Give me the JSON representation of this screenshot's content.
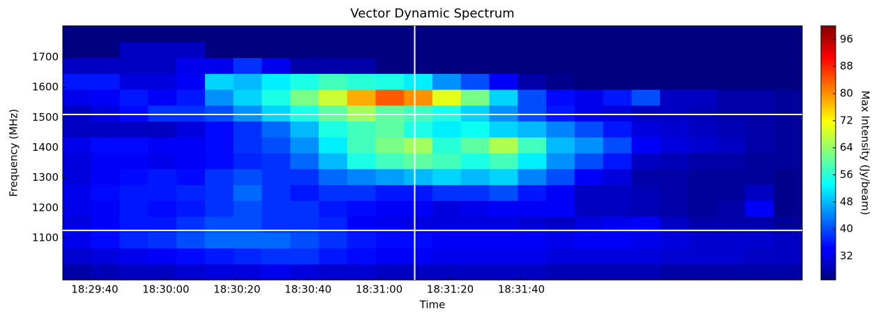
{
  "chart_data": {
    "type": "heatmap",
    "title": "Vector Dynamic Spectrum",
    "x_label": "Time",
    "y_label": "Frequency (MHz)",
    "colorbar_label": "Max Intensity (Jy/beam)",
    "colormap": "jet",
    "xlim": [
      66571,
      66779
    ],
    "ylim": [
      961,
      1804
    ],
    "clim": [
      25,
      100
    ],
    "xticks": [
      {
        "value": 66580,
        "label": "18:29:40"
      },
      {
        "value": 66600,
        "label": "18:30:00"
      },
      {
        "value": 66620,
        "label": "18:30:20"
      },
      {
        "value": 66640,
        "label": "18:30:40"
      },
      {
        "value": 66660,
        "label": "18:31:00"
      },
      {
        "value": 66680,
        "label": "18:31:20"
      },
      {
        "value": 66700,
        "label": "18:31:40"
      }
    ],
    "yticks": [
      1100,
      1200,
      1300,
      1400,
      1500,
      1600,
      1700
    ],
    "cticks": [
      32,
      40,
      48,
      56,
      64,
      72,
      80,
      88,
      96
    ],
    "hlines": [
      1510,
      1125
    ],
    "vlines": [
      66670
    ],
    "line_color": "#ffffff",
    "values": [
      [
        28,
        29,
        30,
        30,
        31,
        32,
        32,
        33,
        32,
        31,
        31,
        30,
        30,
        30,
        30,
        30,
        30,
        29,
        29,
        29,
        29,
        28,
        28,
        28,
        28,
        28
      ],
      [
        31,
        32,
        33,
        34,
        35,
        36,
        37,
        38,
        38,
        36,
        35,
        34,
        34,
        33,
        33,
        33,
        33,
        32,
        32,
        32,
        32,
        31,
        31,
        31,
        30,
        30
      ],
      [
        33,
        35,
        37,
        38,
        40,
        42,
        42,
        42,
        40,
        38,
        36,
        35,
        35,
        34,
        34,
        34,
        34,
        33,
        34,
        34,
        33,
        32,
        31,
        31,
        31,
        30
      ],
      [
        32,
        34,
        36,
        36,
        38,
        40,
        40,
        38,
        38,
        37,
        34,
        33,
        32,
        32,
        32,
        32,
        31,
        30,
        32,
        33,
        34,
        30,
        28,
        28,
        28,
        27
      ],
      [
        33,
        34,
        36,
        35,
        36,
        38,
        40,
        38,
        38,
        36,
        35,
        34,
        34,
        32,
        33,
        34,
        34,
        34,
        30,
        30,
        29,
        28,
        27,
        28,
        34,
        26
      ],
      [
        33,
        35,
        36,
        36,
        37,
        38,
        42,
        38,
        36,
        38,
        38,
        36,
        36,
        38,
        38,
        40,
        36,
        34,
        30,
        30,
        29,
        28,
        27,
        27,
        30,
        26
      ],
      [
        32,
        34,
        35,
        36,
        35,
        38,
        40,
        38,
        38,
        42,
        44,
        46,
        48,
        50,
        48,
        50,
        44,
        40,
        34,
        32,
        28,
        28,
        27,
        27,
        27,
        26
      ],
      [
        32,
        34,
        34,
        33,
        34,
        35,
        37,
        38,
        42,
        48,
        55,
        58,
        60,
        58,
        55,
        58,
        52,
        45,
        40,
        36,
        30,
        29,
        28,
        28,
        27,
        27
      ],
      [
        33,
        35,
        35,
        34,
        34,
        35,
        38,
        40,
        45,
        52,
        58,
        62,
        65,
        56,
        60,
        66,
        58,
        48,
        45,
        40,
        34,
        32,
        31,
        30,
        28,
        27
      ],
      [
        30,
        30,
        30,
        30,
        32,
        35,
        38,
        42,
        48,
        55,
        58,
        60,
        55,
        52,
        54,
        50,
        48,
        44,
        40,
        36,
        32,
        31,
        30,
        29,
        28,
        27
      ],
      [
        30,
        32,
        35,
        38,
        38,
        40,
        45,
        50,
        55,
        60,
        65,
        60,
        58,
        55,
        50,
        45,
        40,
        36,
        33,
        32,
        30,
        30,
        29,
        28,
        28,
        27
      ],
      [
        33,
        34,
        36,
        34,
        36,
        45,
        50,
        55,
        62,
        68,
        78,
        84,
        80,
        70,
        62,
        50,
        40,
        35,
        33,
        36,
        40,
        30,
        30,
        28,
        28,
        27
      ],
      [
        36,
        36,
        32,
        32,
        34,
        50,
        48,
        52,
        55,
        58,
        56,
        55,
        52,
        45,
        40,
        34,
        28,
        26,
        25,
        25,
        25,
        25,
        25,
        25,
        25,
        25
      ],
      [
        30,
        30,
        30,
        30,
        33,
        33,
        38,
        33,
        28,
        28,
        28,
        25,
        25,
        25,
        25,
        25,
        25,
        25,
        25,
        25,
        25,
        25,
        25,
        25,
        25,
        25
      ],
      [
        25,
        25,
        30,
        30,
        30,
        25,
        25,
        25,
        25,
        25,
        25,
        25,
        25,
        25,
        25,
        25,
        25,
        25,
        25,
        25,
        25,
        25,
        25,
        25,
        25,
        25
      ],
      [
        25,
        25,
        25,
        25,
        25,
        25,
        25,
        25,
        25,
        25,
        25,
        25,
        25,
        25,
        25,
        25,
        25,
        25,
        25,
        25,
        25,
        25,
        25,
        25,
        25,
        25
      ]
    ]
  }
}
